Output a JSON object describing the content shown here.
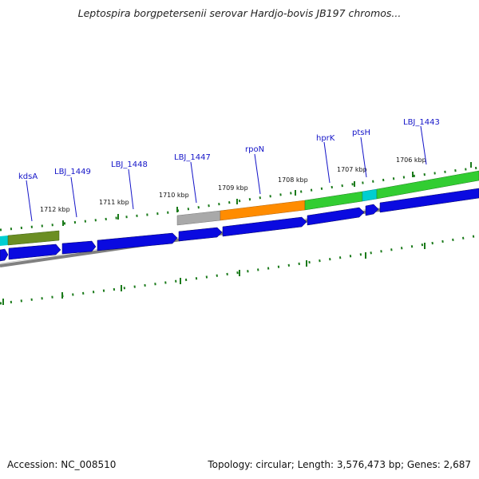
{
  "title": "Leptospira borgpetersenii serovar Hardjo-bovis JB197 chromos...",
  "colors": {
    "gene_blue": "#0a0ae0",
    "olive": "#6b8e23",
    "green": "#32cd32",
    "orange": "#ff8c00",
    "gray": "#a9a9a9",
    "cyan": "#00ced1",
    "tick_green": "#1a7a1a",
    "label_blue": "#1414c8",
    "backbone": "#808080"
  },
  "scale_labels": [
    "1712 kbp",
    "1711 kbp",
    "1710 kbp",
    "1709 kbp",
    "1708 kbp",
    "1707 kbp",
    "1706 kbp"
  ],
  "genes": [
    {
      "name": "kdsA"
    },
    {
      "name": "LBJ_1449"
    },
    {
      "name": "LBJ_1448"
    },
    {
      "name": "LBJ_1447"
    },
    {
      "name": "rpoN"
    },
    {
      "name": "hprK"
    },
    {
      "name": "ptsH"
    },
    {
      "name": "LBJ_1443"
    }
  ],
  "footer": {
    "accession": "Accession: NC_008510",
    "summary": "Topology: circular; Length: 3,576,473 bp; Genes: 2,687"
  }
}
